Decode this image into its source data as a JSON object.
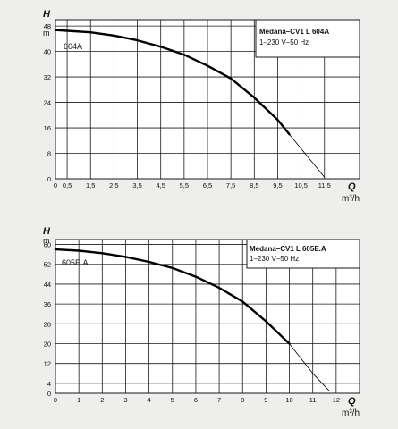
{
  "colors": {
    "background": "#eeeeed",
    "grid": "#1a1a1a",
    "curve": "#000000",
    "legend_box": "#ffffff"
  },
  "chart_data": [
    {
      "type": "line",
      "ylabel": "H",
      "yunit": "m",
      "xlabel": "Q",
      "xunit": "m³/h",
      "xlim": [
        0,
        13
      ],
      "ylim": [
        0,
        50
      ],
      "xticks": [
        0,
        0.5,
        1.5,
        2.5,
        3.5,
        4.5,
        5.5,
        6.5,
        7.5,
        8.5,
        9.5,
        10.5,
        11.5
      ],
      "xtick_labels": [
        "0",
        "0,5",
        "1,5",
        "2,5",
        "3,5",
        "4,5",
        "5,5",
        "6,5",
        "7,5",
        "8,5",
        "9,5",
        "10,5",
        "11,5"
      ],
      "yticks": [
        0,
        8,
        16,
        24,
        32,
        40,
        48
      ],
      "ytick_labels": [
        "0",
        "8",
        "16",
        "24",
        "32",
        "40",
        "48"
      ],
      "grid": true,
      "legend_title": "Medana–CV1 L 604A",
      "legend_subtitle": "1–230 V–50 Hz",
      "legend_position": "top-right",
      "series": [
        {
          "name": "604A",
          "style": "solid-thick",
          "x": [
            0,
            0.5,
            1.5,
            2.5,
            3.5,
            4.5,
            5.5,
            6.5,
            7.5,
            8.5,
            9.5,
            10
          ],
          "y": [
            46.7,
            46.5,
            46,
            45,
            43.5,
            41.5,
            39,
            35.5,
            31.5,
            25.5,
            18.5,
            14
          ]
        },
        {
          "name": "",
          "style": "solid-thin",
          "x": [
            10,
            10.5,
            11,
            11.5
          ],
          "y": [
            14,
            9.5,
            5,
            0.5
          ]
        }
      ]
    },
    {
      "type": "line",
      "ylabel": "H",
      "yunit": "m",
      "xlabel": "Q",
      "xunit": "m³/h",
      "xlim": [
        0,
        13
      ],
      "ylim": [
        0,
        62
      ],
      "xticks": [
        0,
        1,
        2,
        3,
        4,
        5,
        6,
        7,
        8,
        9,
        10,
        11,
        12
      ],
      "xtick_labels": [
        "0",
        "1",
        "2",
        "3",
        "4",
        "5",
        "6",
        "7",
        "8",
        "9",
        "10",
        "11",
        "12"
      ],
      "yticks": [
        0,
        4,
        12,
        20,
        28,
        36,
        44,
        52,
        60
      ],
      "ytick_labels": [
        "0",
        "4",
        "12",
        "20",
        "28",
        "36",
        "44",
        "52",
        "60"
      ],
      "grid": true,
      "legend_title": "Medana–CV1 L 605E.A",
      "legend_subtitle": "1–230 V–50 Hz",
      "legend_position": "top-right",
      "series": [
        {
          "name": "605E.A",
          "style": "solid-thick",
          "x": [
            0,
            1,
            2,
            3,
            4,
            5,
            6,
            7,
            8,
            9,
            10
          ],
          "y": [
            58,
            57.5,
            56.5,
            55,
            53,
            50.5,
            47,
            42.5,
            37,
            29,
            20
          ]
        },
        {
          "name": "",
          "style": "solid-thin",
          "x": [
            10,
            10.5,
            11,
            11.7
          ],
          "y": [
            20,
            14,
            8,
            1
          ]
        }
      ]
    }
  ]
}
